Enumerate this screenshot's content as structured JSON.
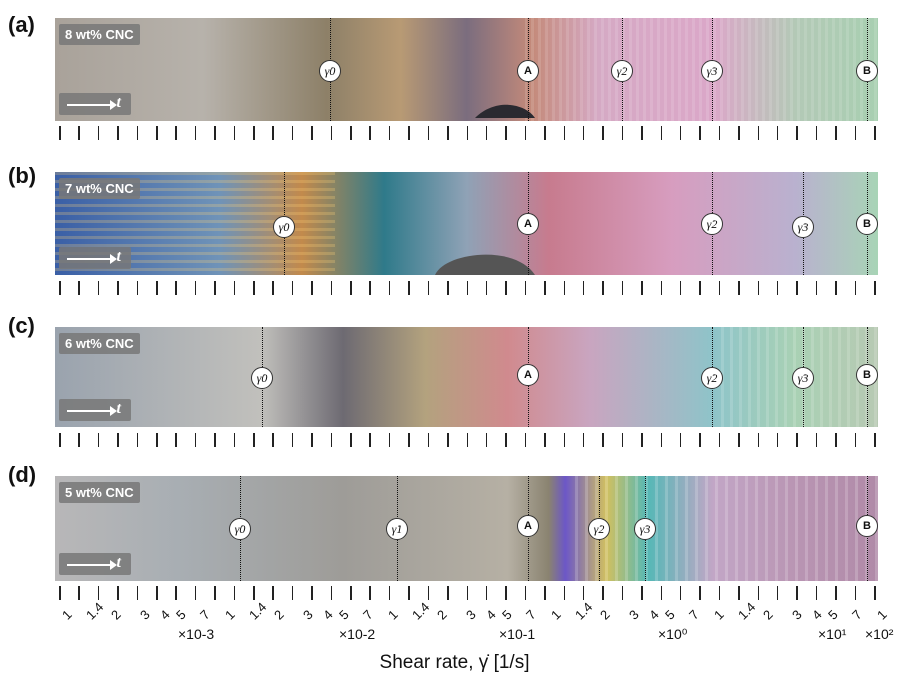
{
  "panels": [
    {
      "label": "(a)",
      "tag": "8 wt% CNC"
    },
    {
      "label": "(b)",
      "tag": "7 wt% CNC"
    },
    {
      "label": "(c)",
      "tag": "6 wt% CNC"
    },
    {
      "label": "(d)",
      "tag": "5 wt% CNC"
    }
  ],
  "time_symbol": "t",
  "markers": {
    "A": "A",
    "B": "B",
    "g0": "γ̇0",
    "g1": "γ̇1",
    "g2": "γ̇2",
    "g3": "γ̇3"
  },
  "axis": {
    "tick_labels": [
      "1",
      "1.4",
      "2",
      "3",
      "4",
      "5",
      "7",
      "1",
      "1.4",
      "2",
      "3",
      "4",
      "5",
      "7",
      "1",
      "1.4",
      "2",
      "3",
      "4",
      "5",
      "7",
      "1",
      "1.4",
      "2",
      "3",
      "4",
      "5",
      "7",
      "1",
      "1.4",
      "2",
      "3",
      "4",
      "5",
      "7",
      "1"
    ],
    "multipliers": [
      "×10-3",
      "×10-2",
      "×10-1",
      "×10⁰",
      "×10¹",
      "×10²"
    ],
    "title": "Shear rate, γ̇ [1/s]"
  },
  "colors": {
    "tick": "#222222",
    "background": "#ffffff",
    "tag_bg": "#787878"
  }
}
